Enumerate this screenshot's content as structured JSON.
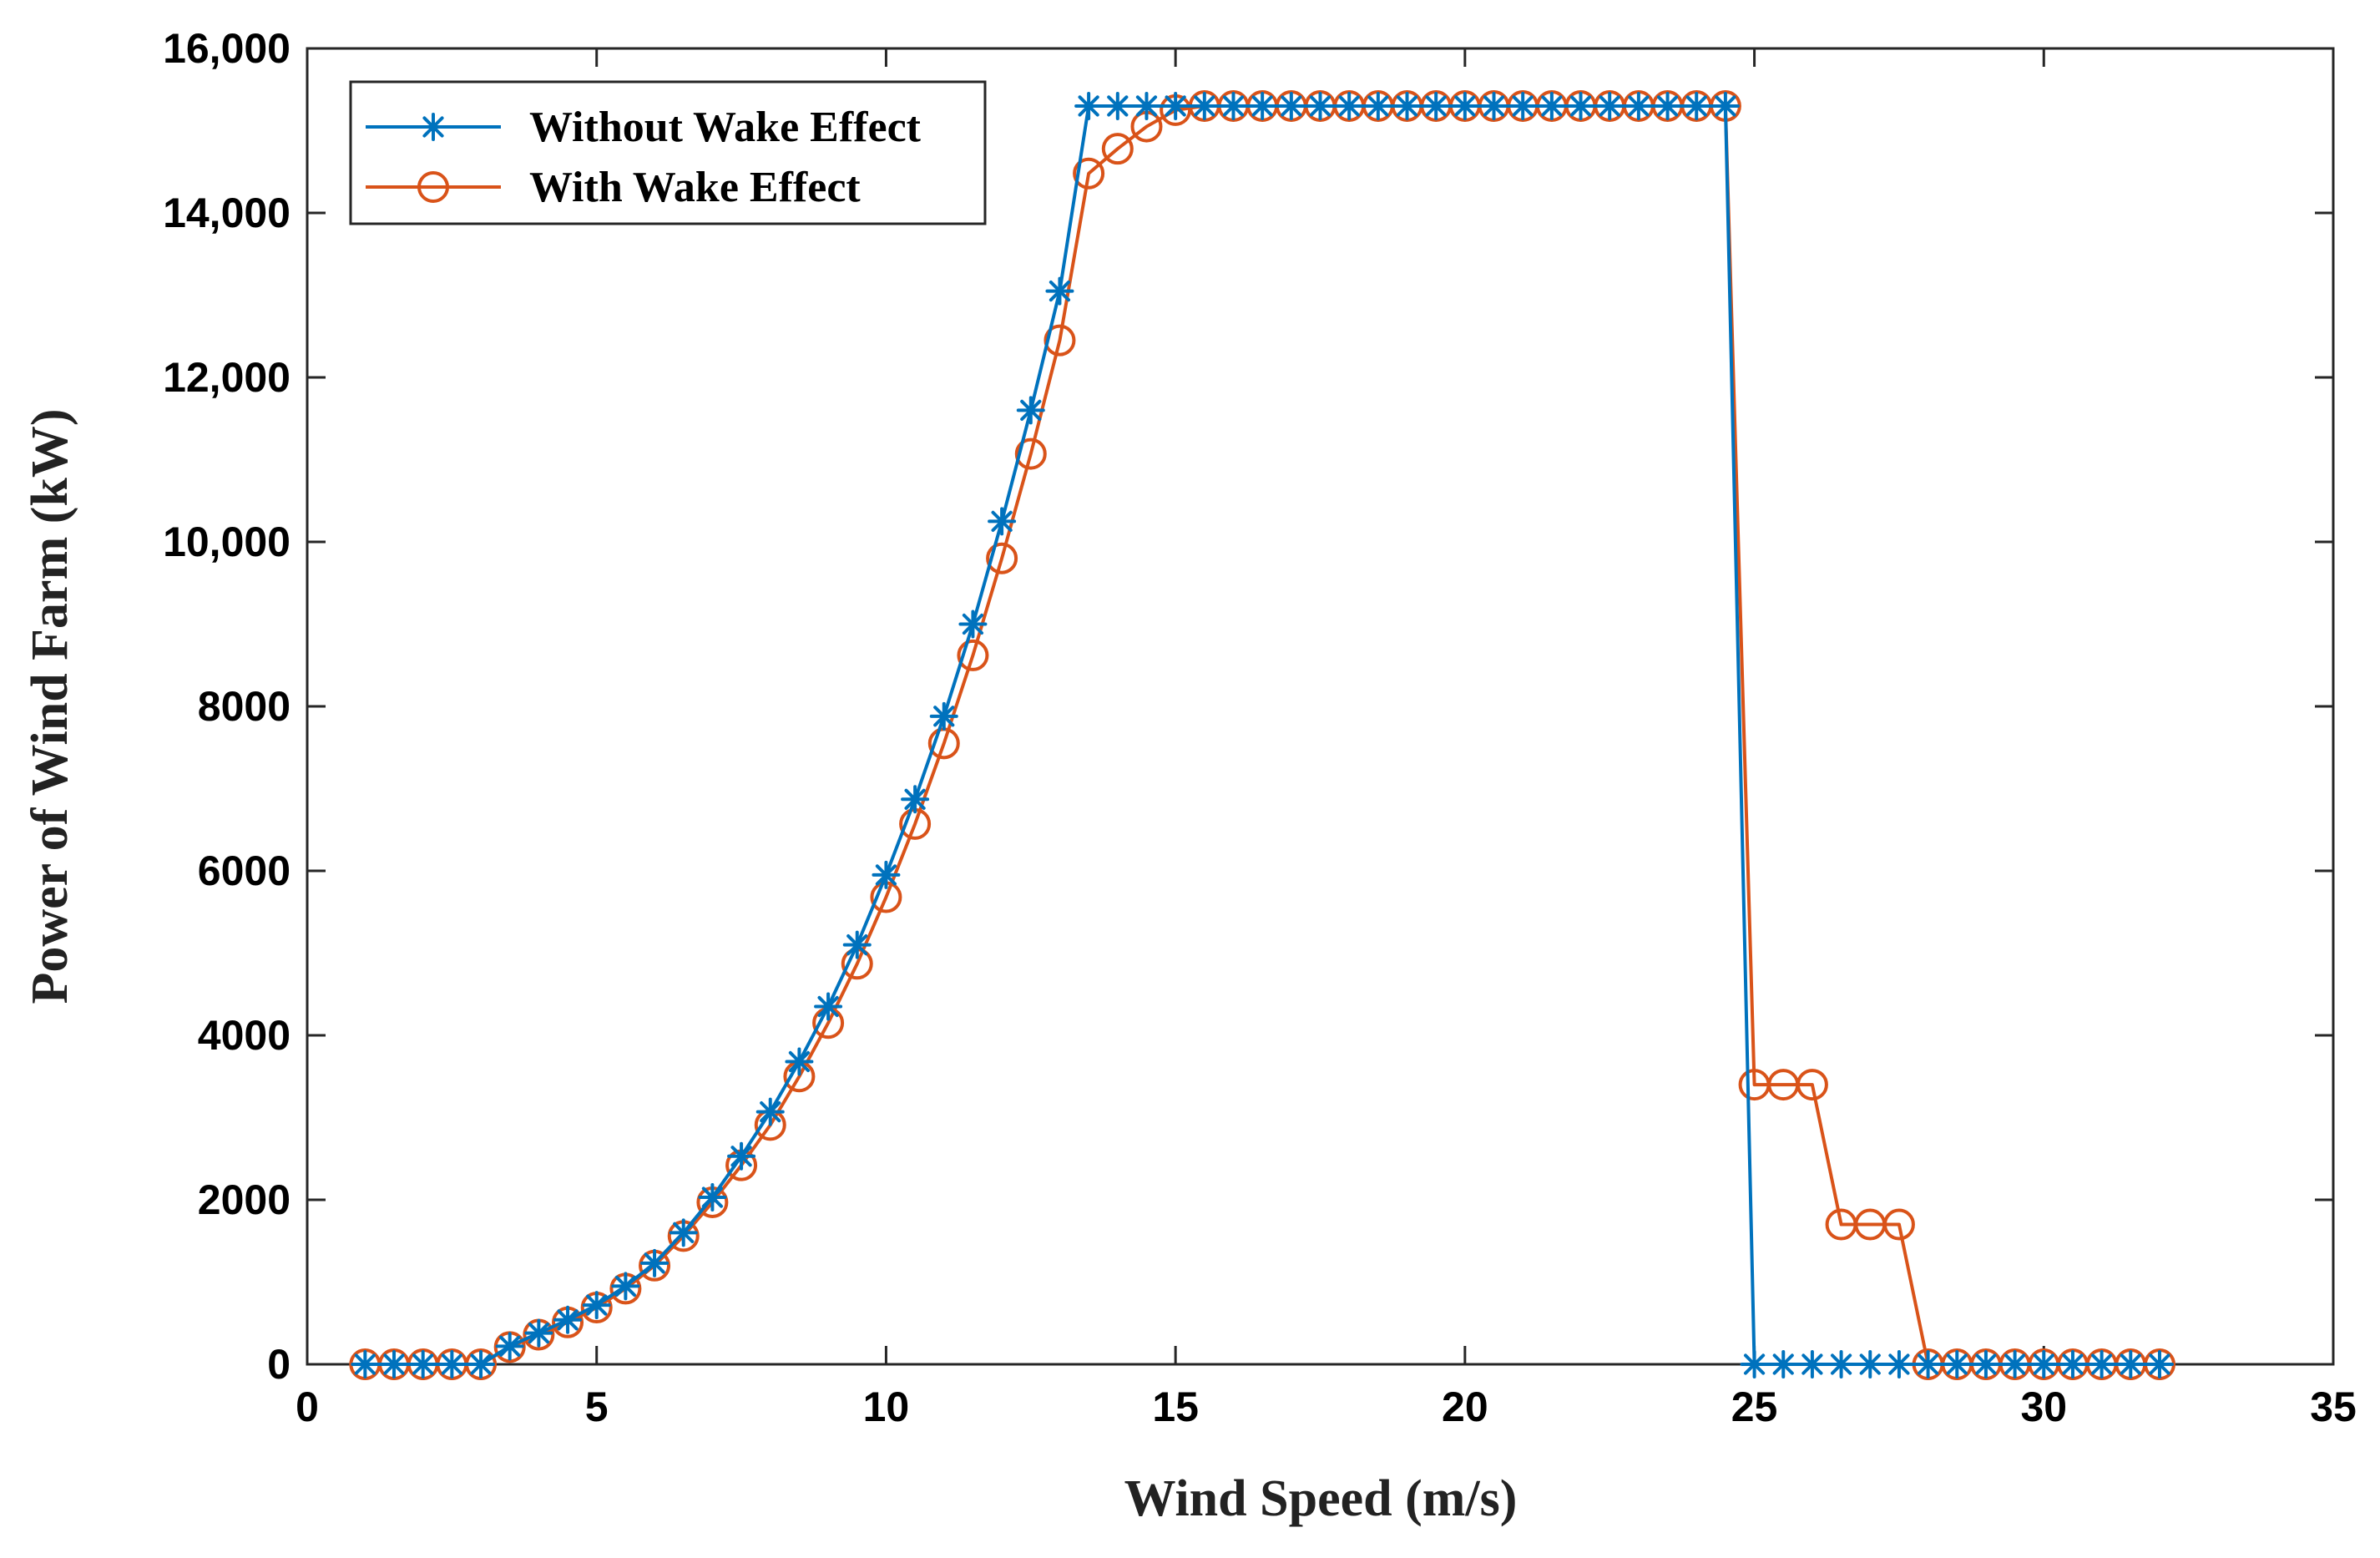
{
  "chart_data": {
    "type": "line",
    "title": "",
    "xlabel": "Wind Speed (m/s)",
    "ylabel": "Power of Wind Farm (kW)",
    "xlim": [
      0,
      35
    ],
    "ylim": [
      0,
      16000
    ],
    "xticks": [
      0,
      5,
      10,
      15,
      20,
      25,
      30,
      35
    ],
    "xtick_labels": [
      "0",
      "5",
      "10",
      "15",
      "20",
      "25",
      "30",
      "35"
    ],
    "yticks": [
      0,
      2000,
      4000,
      6000,
      8000,
      10000,
      12000,
      14000,
      16000
    ],
    "ytick_labels": [
      "0",
      "2000",
      "4000",
      "6000",
      "8000",
      "10,000",
      "12,000",
      "14,000",
      "16,000"
    ],
    "grid": false,
    "legend_position": "top-left",
    "x": [
      1,
      1.5,
      2,
      2.5,
      3,
      3.5,
      4,
      4.5,
      5,
      5.5,
      6,
      6.5,
      7,
      7.5,
      8,
      8.5,
      9,
      9.5,
      10,
      10.5,
      11,
      11.5,
      12,
      12.5,
      13,
      13.5,
      14,
      14.5,
      15,
      15.5,
      16,
      16.5,
      17,
      17.5,
      18,
      18.5,
      19,
      19.5,
      20,
      20.5,
      21,
      21.5,
      22,
      22.5,
      23,
      23.5,
      24,
      24.5,
      25,
      25.5,
      26,
      26.5,
      27,
      27.5,
      28,
      28.5,
      29,
      29.5,
      30,
      30.5,
      31,
      31.5,
      32
    ],
    "series": [
      {
        "name": "Without Wake Effect",
        "color": "#0072BD",
        "marker": "asterisk",
        "values": [
          0,
          0,
          0,
          0,
          0,
          220,
          380,
          540,
          720,
          950,
          1230,
          1600,
          2030,
          2530,
          3070,
          3680,
          4350,
          5100,
          5950,
          6870,
          7880,
          9000,
          10250,
          11600,
          13050,
          15300,
          15300,
          15300,
          15300,
          15300,
          15300,
          15300,
          15300,
          15300,
          15300,
          15300,
          15300,
          15300,
          15300,
          15300,
          15300,
          15300,
          15300,
          15300,
          15300,
          15300,
          15300,
          15300,
          0,
          0,
          0,
          0,
          0,
          0,
          0,
          0,
          0,
          0,
          0,
          0,
          0,
          0,
          0
        ]
      },
      {
        "name": "With Wake Effect",
        "color": "#D95319",
        "marker": "circle",
        "values": [
          0,
          0,
          0,
          0,
          0,
          210,
          360,
          510,
          690,
          920,
          1200,
          1560,
          1970,
          2420,
          2910,
          3500,
          4150,
          4870,
          5680,
          6570,
          7550,
          8620,
          9800,
          11070,
          12450,
          14480,
          14780,
          15050,
          15250,
          15300,
          15300,
          15300,
          15300,
          15300,
          15300,
          15300,
          15300,
          15300,
          15300,
          15300,
          15300,
          15300,
          15300,
          15300,
          15300,
          15300,
          15300,
          15300,
          3400,
          3400,
          3400,
          1700,
          1700,
          1700,
          0,
          0,
          0,
          0,
          0,
          0,
          0,
          0,
          0
        ]
      }
    ]
  }
}
